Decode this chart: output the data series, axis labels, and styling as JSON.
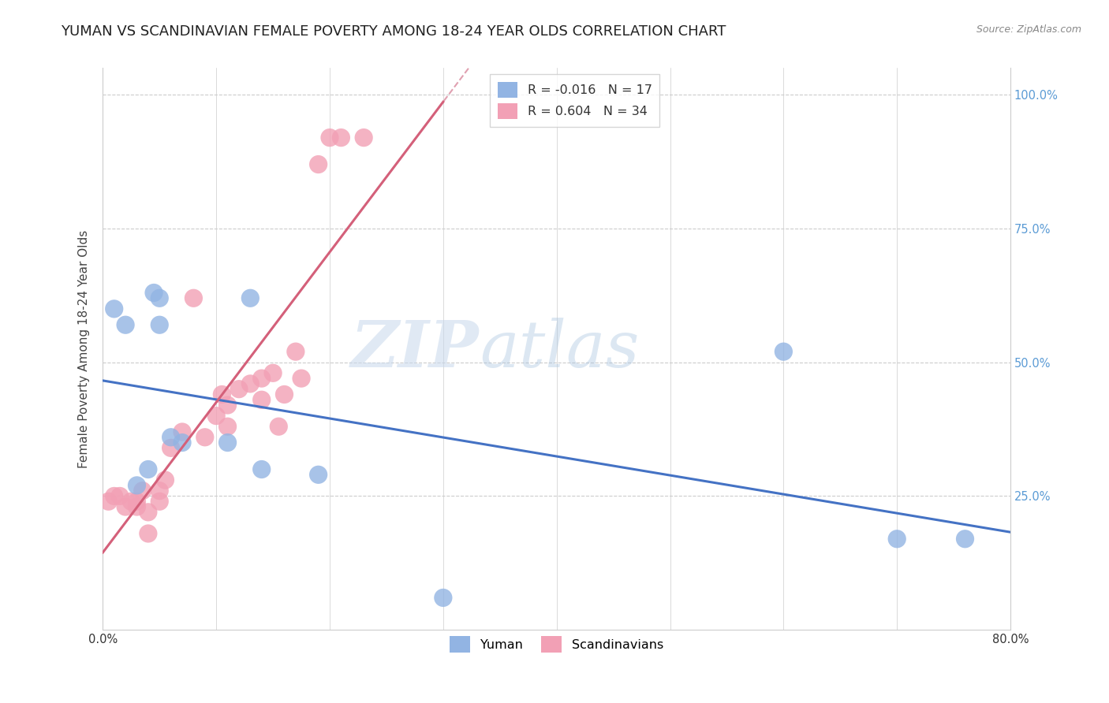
{
  "title": "YUMAN VS SCANDINAVIAN FEMALE POVERTY AMONG 18-24 YEAR OLDS CORRELATION CHART",
  "source": "Source: ZipAtlas.com",
  "ylabel": "Female Poverty Among 18-24 Year Olds",
  "xlim": [
    0.0,
    0.8
  ],
  "ylim": [
    0.0,
    1.05
  ],
  "xtick_vals": [
    0.0,
    0.8
  ],
  "xtick_labels": [
    "0.0%",
    "80.0%"
  ],
  "ytick_positions": [
    0.25,
    0.5,
    0.75,
    1.0
  ],
  "ytick_labels": [
    "25.0%",
    "50.0%",
    "75.0%",
    "100.0%"
  ],
  "legend_r1": "-0.016",
  "legend_n1": "17",
  "legend_r2": "0.604",
  "legend_n2": "34",
  "color_yuman": "#92B4E3",
  "color_scandi": "#F2A0B5",
  "color_yuman_line": "#4472C4",
  "color_scandi_line": "#D4607A",
  "color_scandi_line_dashed": "#E0A0B0",
  "yuman_x": [
    0.01,
    0.02,
    0.03,
    0.04,
    0.045,
    0.05,
    0.05,
    0.06,
    0.07,
    0.11,
    0.13,
    0.14,
    0.19,
    0.3,
    0.6,
    0.7,
    0.76
  ],
  "yuman_y": [
    0.6,
    0.57,
    0.27,
    0.3,
    0.63,
    0.62,
    0.57,
    0.36,
    0.35,
    0.35,
    0.62,
    0.3,
    0.29,
    0.06,
    0.52,
    0.17,
    0.17
  ],
  "scandi_x": [
    0.005,
    0.01,
    0.015,
    0.02,
    0.025,
    0.03,
    0.03,
    0.035,
    0.04,
    0.04,
    0.05,
    0.05,
    0.055,
    0.06,
    0.07,
    0.08,
    0.09,
    0.1,
    0.105,
    0.11,
    0.11,
    0.12,
    0.13,
    0.14,
    0.14,
    0.15,
    0.155,
    0.16,
    0.17,
    0.175,
    0.19,
    0.2,
    0.21,
    0.23
  ],
  "scandi_y": [
    0.24,
    0.25,
    0.25,
    0.23,
    0.24,
    0.24,
    0.23,
    0.26,
    0.18,
    0.22,
    0.24,
    0.26,
    0.28,
    0.34,
    0.37,
    0.62,
    0.36,
    0.4,
    0.44,
    0.38,
    0.42,
    0.45,
    0.46,
    0.43,
    0.47,
    0.48,
    0.38,
    0.44,
    0.52,
    0.47,
    0.87,
    0.92,
    0.92,
    0.92
  ],
  "background_color": "#FFFFFF",
  "grid_color": "#CCCCCC",
  "watermark_zip": "ZIP",
  "watermark_atlas": "atlas",
  "title_fontsize": 13,
  "axis_label_fontsize": 11,
  "tick_label_color": "#5B9BD5",
  "source_color": "#888888"
}
